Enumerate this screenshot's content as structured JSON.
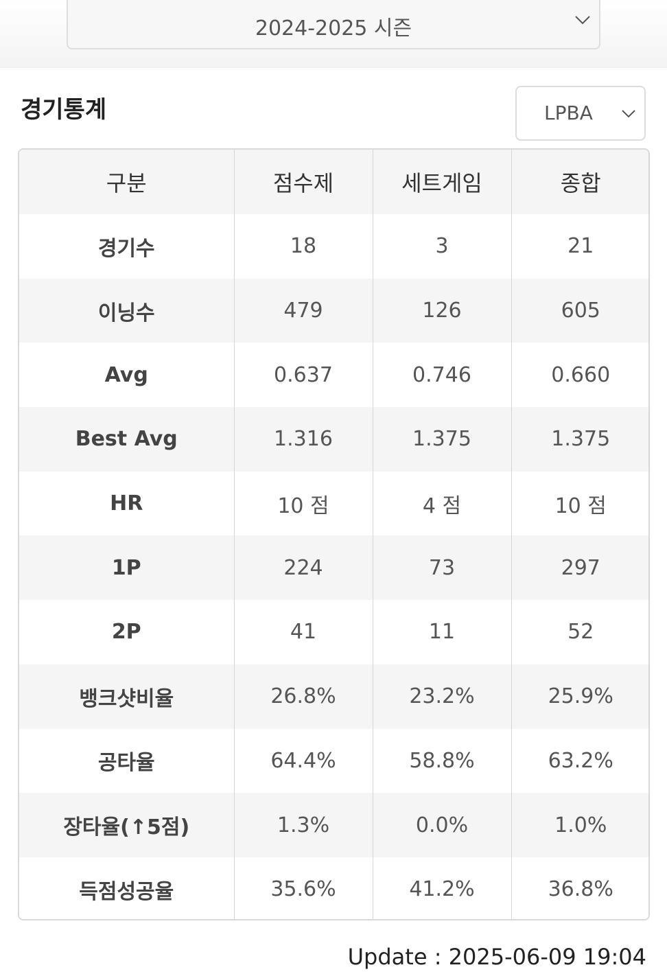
{
  "season_select": {
    "value": "2024-2025 시즌"
  },
  "stats_section": {
    "title": "경기통계",
    "league_select": {
      "value": "LPBA"
    }
  },
  "table": {
    "headers": [
      "구분",
      "점수제",
      "세트게임",
      "종합"
    ],
    "rows": [
      {
        "label": "경기수",
        "values": [
          "18",
          "3",
          "21"
        ]
      },
      {
        "label": "이닝수",
        "values": [
          "479",
          "126",
          "605"
        ]
      },
      {
        "label": "Avg",
        "values": [
          "0.637",
          "0.746",
          "0.660"
        ]
      },
      {
        "label": "Best Avg",
        "values": [
          "1.316",
          "1.375",
          "1.375"
        ]
      },
      {
        "label": "HR",
        "values": [
          "10 점",
          "4 점",
          "10 점"
        ]
      },
      {
        "label": "1P",
        "values": [
          "224",
          "73",
          "297"
        ]
      },
      {
        "label": "2P",
        "values": [
          "41",
          "11",
          "52"
        ]
      },
      {
        "label": "뱅크샷비율",
        "values": [
          "26.8%",
          "23.2%",
          "25.9%"
        ]
      },
      {
        "label": "공타율",
        "values": [
          "64.4%",
          "58.8%",
          "63.2%"
        ]
      },
      {
        "label": "장타율(↑5점)",
        "values": [
          "1.3%",
          "0.0%",
          "1.0%"
        ]
      },
      {
        "label": "득점성공율",
        "values": [
          "35.6%",
          "41.2%",
          "36.8%"
        ]
      }
    ]
  },
  "update_text": "Update : 2025-06-09 19:04",
  "icons": {
    "dropdown": "chevron-down-icon"
  },
  "colors": {
    "border": "#d9d9d9",
    "row_alt": "#f5f5f5",
    "text": "#333333"
  }
}
